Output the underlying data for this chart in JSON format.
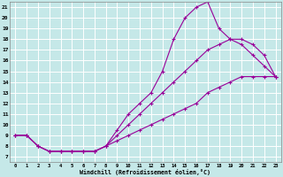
{
  "xlabel": "Windchill (Refroidissement éolien,°C)",
  "bg_color": "#c5e8e8",
  "line_color": "#990099",
  "grid_color": "#ffffff",
  "xlim": [
    -0.5,
    23.5
  ],
  "ylim": [
    6.5,
    21.5
  ],
  "xticks": [
    0,
    1,
    2,
    3,
    4,
    5,
    6,
    7,
    8,
    9,
    10,
    11,
    12,
    13,
    14,
    15,
    16,
    17,
    18,
    19,
    20,
    21,
    22,
    23
  ],
  "yticks": [
    7,
    8,
    9,
    10,
    11,
    12,
    13,
    14,
    15,
    16,
    17,
    18,
    19,
    20,
    21
  ],
  "line1_x": [
    0,
    1,
    2,
    3,
    4,
    5,
    6,
    7,
    8,
    9,
    10,
    11,
    12,
    13,
    14,
    15,
    16,
    17,
    18,
    19,
    20,
    21,
    22,
    23
  ],
  "line1_y": [
    9,
    9,
    8,
    7.5,
    7.5,
    7.5,
    7.5,
    7.5,
    8.0,
    9.5,
    11,
    12,
    13,
    15,
    18,
    20,
    21,
    21.5,
    19,
    18.0,
    17.5,
    16.5,
    15.5,
    14.5
  ],
  "line2_x": [
    0,
    1,
    2,
    3,
    4,
    5,
    6,
    7,
    8,
    9,
    10,
    11,
    12,
    13,
    14,
    15,
    16,
    17,
    18,
    19,
    20,
    21,
    22,
    23
  ],
  "line2_y": [
    9,
    9,
    8,
    7.5,
    7.5,
    7.5,
    7.5,
    7.5,
    8.0,
    9.0,
    10,
    11,
    12,
    13,
    14,
    15,
    16,
    17,
    17.5,
    18.0,
    18.0,
    17.5,
    16.5,
    14.5
  ],
  "line3_x": [
    0,
    1,
    2,
    3,
    4,
    5,
    6,
    7,
    8,
    9,
    10,
    11,
    12,
    13,
    14,
    15,
    16,
    17,
    18,
    19,
    20,
    21,
    22,
    23
  ],
  "line3_y": [
    9,
    9,
    8,
    7.5,
    7.5,
    7.5,
    7.5,
    7.5,
    8.0,
    8.5,
    9.0,
    9.5,
    10,
    10.5,
    11,
    11.5,
    12,
    13,
    13.5,
    14.0,
    14.5,
    14.5,
    14.5,
    14.5
  ],
  "font_family": "monospace"
}
